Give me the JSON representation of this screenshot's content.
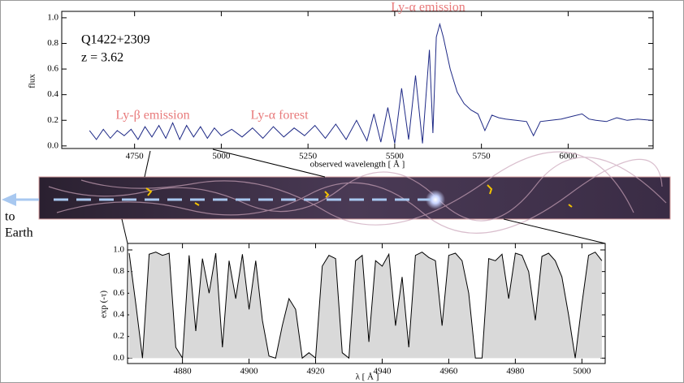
{
  "chart_data": [
    {
      "type": "line",
      "color": "#1f2a86",
      "x_label": "observed wavelength [ Å ]",
      "y_label": "flux",
      "annotations": [
        "Q1422+2309",
        "z = 3.62",
        "Ly-α emission",
        "Ly-β emission",
        "Ly-α forest"
      ],
      "x": [
        4620,
        4640,
        4660,
        4680,
        4700,
        4720,
        4740,
        4760,
        4780,
        4800,
        4820,
        4840,
        4860,
        4880,
        4900,
        4920,
        4940,
        4960,
        4980,
        5000,
        5030,
        5060,
        5090,
        5120,
        5150,
        5180,
        5210,
        5240,
        5270,
        5300,
        5330,
        5360,
        5390,
        5420,
        5440,
        5460,
        5480,
        5500,
        5520,
        5540,
        5560,
        5580,
        5600,
        5610,
        5620,
        5630,
        5640,
        5660,
        5680,
        5700,
        5720,
        5740,
        5760,
        5780,
        5800,
        5820,
        5850,
        5880,
        5900,
        5920,
        5950,
        5980,
        6010,
        6040,
        6060,
        6080,
        6110,
        6140,
        6170,
        6200,
        6240
      ],
      "values": [
        0.12,
        0.05,
        0.13,
        0.06,
        0.12,
        0.08,
        0.13,
        0.05,
        0.15,
        0.07,
        0.16,
        0.06,
        0.18,
        0.05,
        0.16,
        0.07,
        0.15,
        0.06,
        0.14,
        0.08,
        0.13,
        0.07,
        0.14,
        0.06,
        0.15,
        0.07,
        0.14,
        0.08,
        0.16,
        0.06,
        0.17,
        0.05,
        0.2,
        0.04,
        0.25,
        0.03,
        0.3,
        0.02,
        0.45,
        0.05,
        0.55,
        0.02,
        0.75,
        0.1,
        0.85,
        0.95,
        0.85,
        0.6,
        0.42,
        0.33,
        0.28,
        0.25,
        0.12,
        0.24,
        0.22,
        0.21,
        0.2,
        0.19,
        0.08,
        0.19,
        0.2,
        0.21,
        0.23,
        0.25,
        0.21,
        0.2,
        0.19,
        0.22,
        0.2,
        0.21,
        0.2
      ],
      "xlim": [
        4540,
        6245
      ],
      "xticks": [
        4750,
        5000,
        5250,
        5500,
        5750,
        6000
      ],
      "ylim": [
        -0.02,
        1.05
      ],
      "yticks": [
        {
          "value": 0,
          "label": "0.0"
        },
        {
          "value": 0.2,
          "label": "0.2"
        },
        {
          "value": 0.4,
          "label": "0.4"
        },
        {
          "value": 0.6,
          "label": "0.6"
        },
        {
          "value": 0.8,
          "label": "0.8"
        },
        {
          "value": 1,
          "label": "1.0"
        }
      ]
    },
    {
      "type": "area",
      "color": "#000000",
      "fill": "#d9d9d9",
      "x_label": "λ [ Å ]",
      "y_label": "exp (-τ)",
      "x": [
        4864,
        4866,
        4868,
        4870,
        4872,
        4874,
        4876,
        4878,
        4880,
        4882,
        4884,
        4886,
        4888,
        4890,
        4892,
        4894,
        4896,
        4898,
        4900,
        4902,
        4904,
        4906,
        4908,
        4910,
        4912,
        4914,
        4916,
        4918,
        4920,
        4922,
        4924,
        4926,
        4928,
        4930,
        4932,
        4934,
        4936,
        4938,
        4940,
        4942,
        4944,
        4946,
        4948,
        4950,
        4952,
        4954,
        4956,
        4958,
        4960,
        4962,
        4964,
        4966,
        4968,
        4970,
        4972,
        4974,
        4976,
        4978,
        4980,
        4982,
        4984,
        4986,
        4988,
        4990,
        4992,
        4994,
        4996,
        4998,
        5000,
        5002,
        5004,
        5006
      ],
      "values": [
        0.97,
        0.5,
        0.0,
        0.96,
        0.98,
        0.95,
        0.97,
        0.1,
        0.0,
        0.95,
        0.25,
        0.92,
        0.6,
        0.97,
        0.1,
        0.9,
        0.55,
        0.96,
        0.45,
        0.9,
        0.35,
        0.02,
        0.0,
        0.3,
        0.55,
        0.45,
        0.0,
        0.05,
        0.0,
        0.85,
        0.95,
        0.92,
        0.05,
        0.0,
        0.9,
        0.95,
        0.15,
        0.9,
        0.85,
        0.96,
        0.3,
        0.75,
        0.1,
        0.95,
        0.98,
        0.93,
        0.9,
        0.3,
        0.95,
        0.97,
        0.9,
        0.6,
        0.0,
        0.0,
        0.92,
        0.9,
        0.96,
        0.55,
        0.97,
        0.95,
        0.8,
        0.35,
        0.94,
        0.97,
        0.9,
        0.75,
        0.4,
        0.0,
        0.5,
        0.95,
        0.98,
        0.9
      ],
      "xlim": [
        4863.5,
        5007
      ],
      "xticks": [
        4880,
        4900,
        4920,
        4940,
        4960,
        4980,
        5000
      ],
      "ylim": [
        -0.05,
        1.06
      ],
      "yticks": [
        {
          "value": 0,
          "label": "0.0"
        },
        {
          "value": 0.2,
          "label": "0.2"
        },
        {
          "value": 0.4,
          "label": "0.4"
        },
        {
          "value": 0.6,
          "label": "0.6"
        },
        {
          "value": 0.8,
          "label": "0.8"
        },
        {
          "value": 1,
          "label": "1.0"
        }
      ]
    }
  ],
  "strip": {
    "labels": [
      "to",
      "Earth"
    ]
  }
}
